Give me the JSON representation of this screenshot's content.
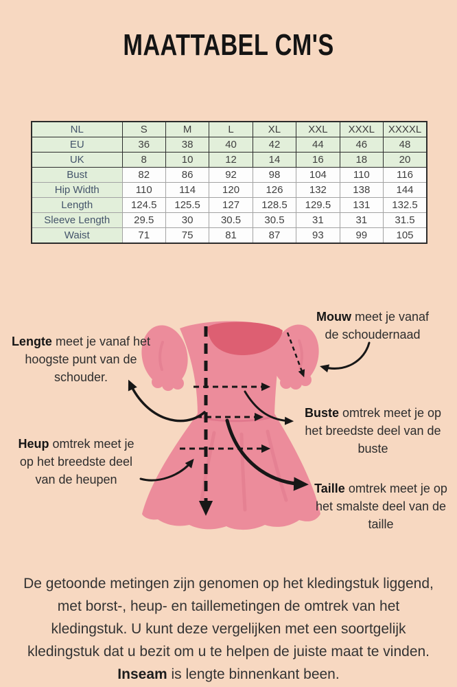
{
  "title": "MAATTABEL CM'S",
  "colors": {
    "background": "#f7d8c1",
    "table_green": "#e2efda",
    "table_border_dark": "#2b2b2b",
    "table_border_light": "#a2a2a2",
    "dress_main": "#ec8c9b",
    "dress_neck": "#dd5f72",
    "dress_fold": "#e0798c",
    "diagram_line": "#171717"
  },
  "size_table": {
    "columns": [
      "NL",
      "S",
      "M",
      "L",
      "XL",
      "XXL",
      "XXXL",
      "XXXXL"
    ],
    "rows": [
      {
        "label": "EU",
        "green": true,
        "values": [
          "36",
          "38",
          "40",
          "42",
          "44",
          "46",
          "48"
        ]
      },
      {
        "label": "UK",
        "green": true,
        "values": [
          "8",
          "10",
          "12",
          "14",
          "16",
          "18",
          "20"
        ]
      },
      {
        "label": "Bust",
        "green": false,
        "values": [
          "82",
          "86",
          "92",
          "98",
          "104",
          "110",
          "116"
        ]
      },
      {
        "label": "Hip Width",
        "green": false,
        "values": [
          "110",
          "114",
          "120",
          "126",
          "132",
          "138",
          "144"
        ]
      },
      {
        "label": "Length",
        "green": false,
        "values": [
          "124.5",
          "125.5",
          "127",
          "128.5",
          "129.5",
          "131",
          "132.5"
        ]
      },
      {
        "label": "Sleeve Length",
        "green": false,
        "values": [
          "29.5",
          "30",
          "30.5",
          "30.5",
          "31",
          "31",
          "31.5"
        ]
      },
      {
        "label": "Waist",
        "green": false,
        "values": [
          "71",
          "75",
          "81",
          "87",
          "93",
          "99",
          "105"
        ]
      }
    ]
  },
  "diagram": {
    "annotations": {
      "lengte": {
        "lead": "Lengte",
        "rest": " meet je vanaf het hoogste punt van de schouder."
      },
      "mouw": {
        "lead": "Mouw",
        "rest": " meet je vanaf de schoudernaad"
      },
      "buste": {
        "lead": "Buste",
        "rest": " omtrek meet je op het breedste deel van de buste"
      },
      "heup": {
        "lead": "Heup",
        "rest": " omtrek meet je op het breedste deel van de heupen"
      },
      "taille": {
        "lead": "Taille",
        "rest": " omtrek meet je op het smalste deel van de taille"
      }
    }
  },
  "footer": {
    "text_before": "De getoonde metingen zijn genomen op het kledingstuk liggend, met borst-, heup- en taillemetingen de omtrek van het kledingstuk. U kunt deze vergelijken met een soortgelijk kledingstuk dat u bezit om u te helpen de juiste maat te vinden. ",
    "bold": "Inseam",
    "text_after": " is lengte binnenkant been."
  }
}
